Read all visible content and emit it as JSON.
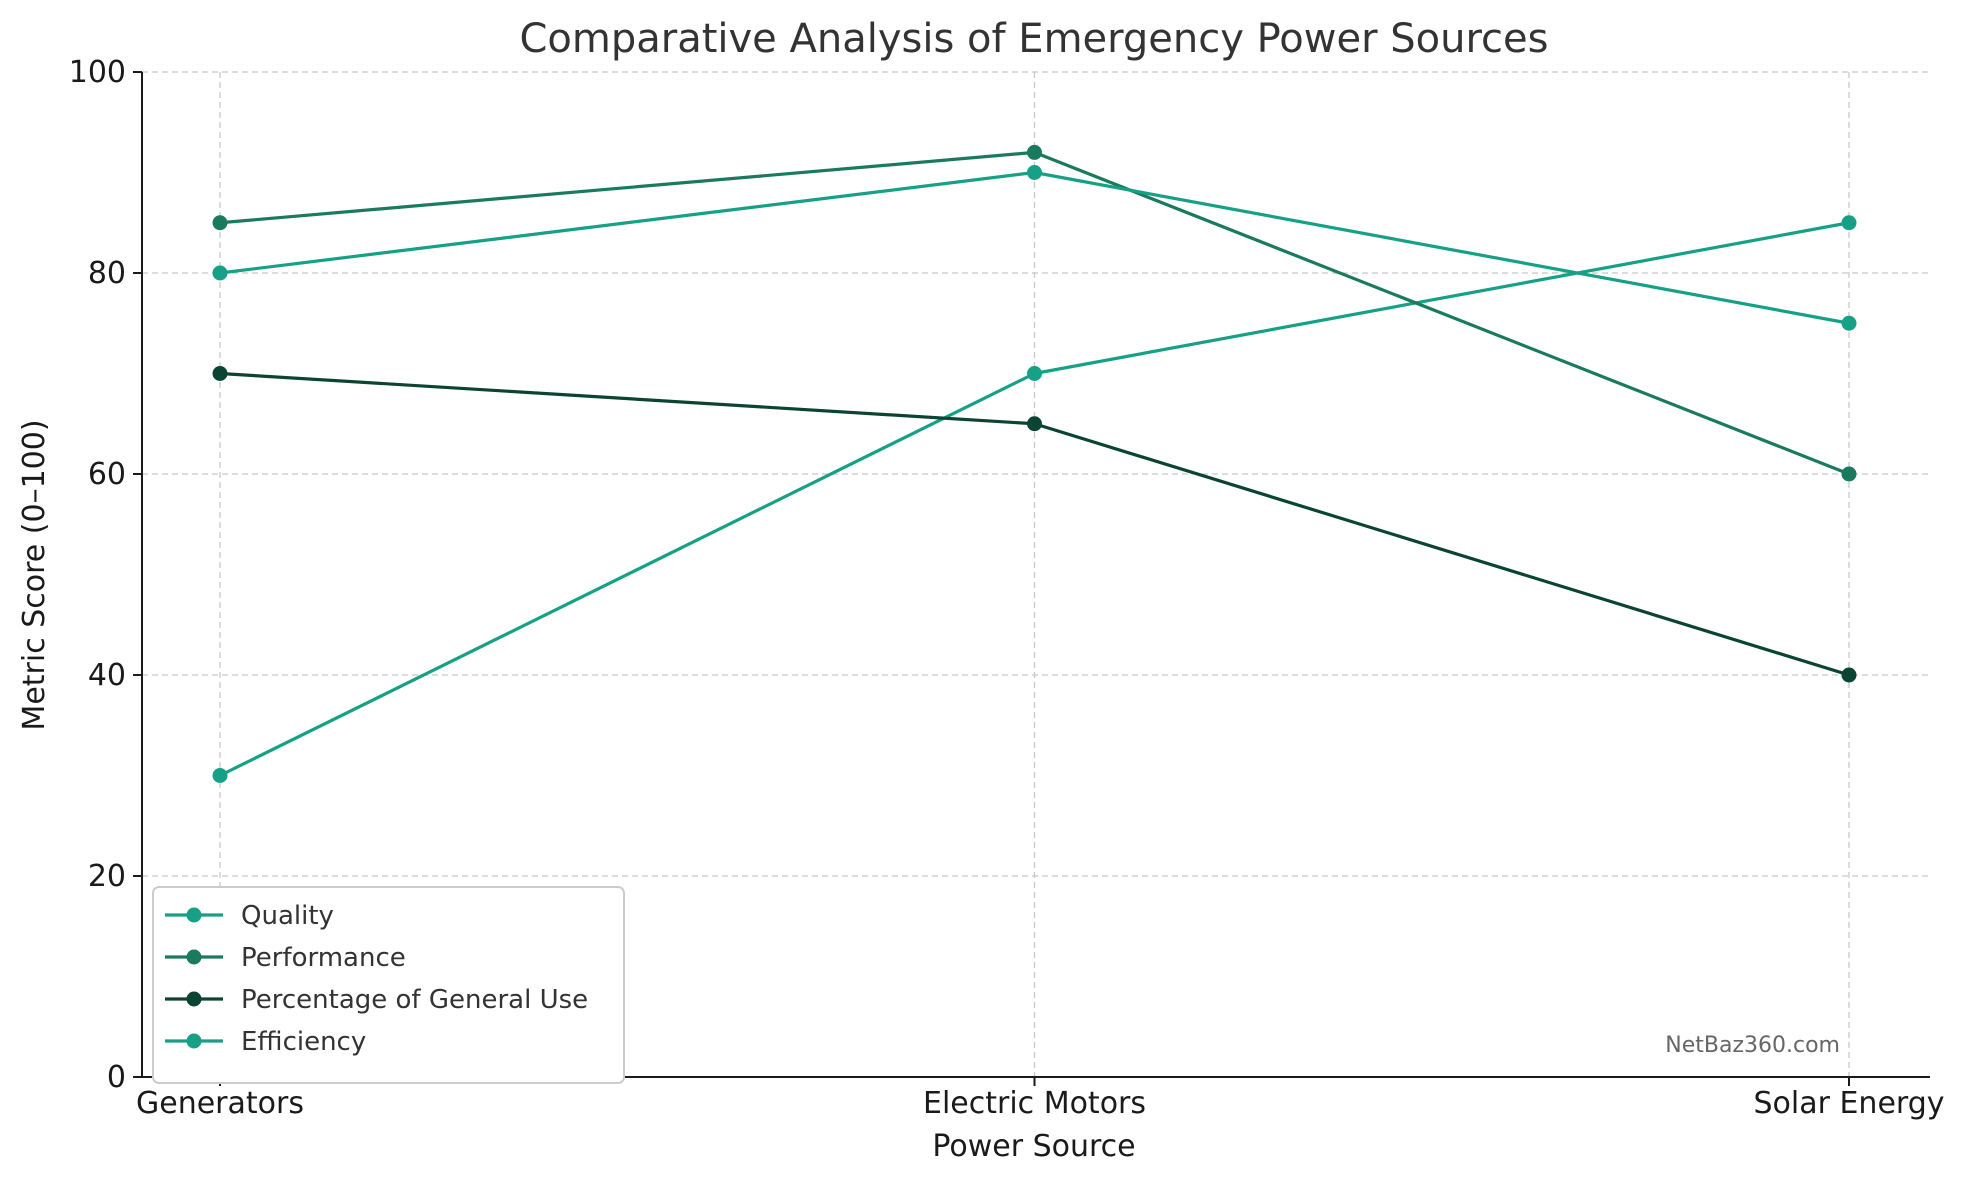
{
  "chart_data": {
    "type": "line",
    "title": "Comparative Analysis of Emergency Power Sources",
    "xlabel": "Power Source",
    "ylabel": "Metric Score (0–100)",
    "categories": [
      "Generators",
      "Electric Motors",
      "Solar Energy"
    ],
    "ylim": [
      0,
      100
    ],
    "yticks": [
      0,
      20,
      40,
      60,
      80,
      100
    ],
    "grid": true,
    "legend_position": "lower-left",
    "series": [
      {
        "name": "Quality",
        "values": [
          30,
          70,
          85
        ],
        "color": "#16a085"
      },
      {
        "name": "Performance",
        "values": [
          85,
          92,
          60
        ],
        "color": "#1a7a5e"
      },
      {
        "name": "Percentage of General Use",
        "values": [
          70,
          65,
          40
        ],
        "color": "#0b4433"
      },
      {
        "name": "Efficiency",
        "values": [
          80,
          90,
          75
        ],
        "color": "#16a085"
      }
    ]
  },
  "watermark": "NetBaz360.com"
}
